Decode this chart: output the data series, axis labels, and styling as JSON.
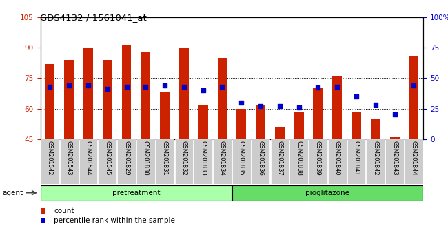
{
  "title": "GDS4132 / 1561041_at",
  "categories": [
    "GSM201542",
    "GSM201543",
    "GSM201544",
    "GSM201545",
    "GSM201829",
    "GSM201830",
    "GSM201831",
    "GSM201832",
    "GSM201833",
    "GSM201834",
    "GSM201835",
    "GSM201836",
    "GSM201837",
    "GSM201838",
    "GSM201839",
    "GSM201840",
    "GSM201841",
    "GSM201842",
    "GSM201843",
    "GSM201844"
  ],
  "count_values": [
    82,
    84,
    90,
    84,
    91,
    88,
    68,
    90,
    62,
    85,
    60,
    62,
    51,
    58,
    70,
    76,
    58,
    55,
    46,
    86
  ],
  "percentile_values": [
    43,
    44,
    44,
    41,
    43,
    43,
    44,
    43,
    40,
    43,
    30,
    27,
    27,
    26,
    42,
    43,
    35,
    28,
    20,
    44
  ],
  "pretreatment_count": 10,
  "pioglitazone_count": 10,
  "group1_label": "pretreatment",
  "group2_label": "pioglitazone",
  "agent_label": "agent",
  "ylim_left": [
    45,
    105
  ],
  "ylim_right": [
    0,
    100
  ],
  "yticks_left": [
    45,
    60,
    75,
    90,
    105
  ],
  "yticks_right": [
    0,
    25,
    50,
    75,
    100
  ],
  "yticklabels_right": [
    "0",
    "25",
    "50",
    "75",
    "100%"
  ],
  "bar_color": "#CC2200",
  "dot_color": "#0000CC",
  "bar_width": 0.5,
  "legend_count_label": "count",
  "legend_percentile_label": "percentile rank within the sample",
  "group1_color": "#AAFFAA",
  "group2_color": "#66DD66",
  "xticklabel_bg": "#CCCCCC"
}
